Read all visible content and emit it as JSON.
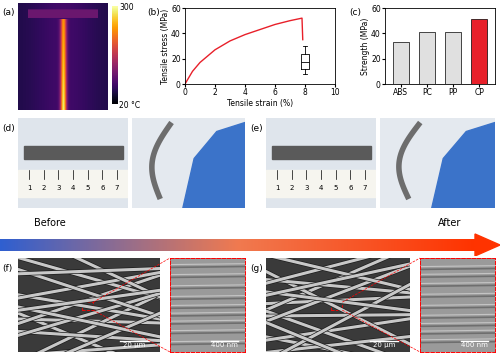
{
  "chart_data": [
    {
      "type": "line",
      "xlabel": "Tensile strain (%)",
      "ylabel": "Tensile stress (MPa)",
      "x": [
        0,
        0.5,
        1,
        1.5,
        2,
        3,
        4,
        5,
        6,
        7,
        7.8,
        7.85
      ],
      "values": [
        0,
        10,
        17,
        22,
        27,
        34,
        39,
        43,
        47,
        50,
        52,
        35
      ],
      "color": "#e8202a",
      "box": {
        "x": 8,
        "whislo": 8,
        "q1": 12,
        "med": 17,
        "q3": 24,
        "whishi": 30
      },
      "xlim": [
        0,
        10
      ],
      "xticks": [
        0,
        2,
        4,
        6,
        8,
        10
      ],
      "ylim": [
        0,
        60
      ],
      "yticks": [
        0,
        20,
        40,
        60
      ]
    },
    {
      "type": "bar",
      "ylabel": "Strength (MPa)",
      "categories": [
        "ABS",
        "PC",
        "PP",
        "CP"
      ],
      "values": [
        33,
        41,
        41,
        51
      ],
      "colors": [
        "#e0e0e0",
        "#e0e0e0",
        "#e0e0e0",
        "#e8202a"
      ],
      "ylim": [
        0,
        60
      ],
      "yticks": [
        0,
        20,
        40,
        60
      ]
    }
  ],
  "panel_labels": [
    "(a)",
    "(b)",
    "(c)",
    "(d)",
    "(e)",
    "(f)",
    "(g)"
  ],
  "thermal": {
    "colorbar": {
      "lim": [
        20,
        300
      ],
      "ticks": [
        300,
        {
          "value": 20,
          "label": "20 °C"
        }
      ]
    }
  },
  "photos": {
    "ruler_labels": [
      1,
      2,
      3,
      4,
      5,
      6,
      7
    ]
  },
  "arrow": {
    "start": "Before",
    "end": "After"
  },
  "sem": {
    "scale_bars": [
      "20 μm",
      "400 nm"
    ]
  }
}
